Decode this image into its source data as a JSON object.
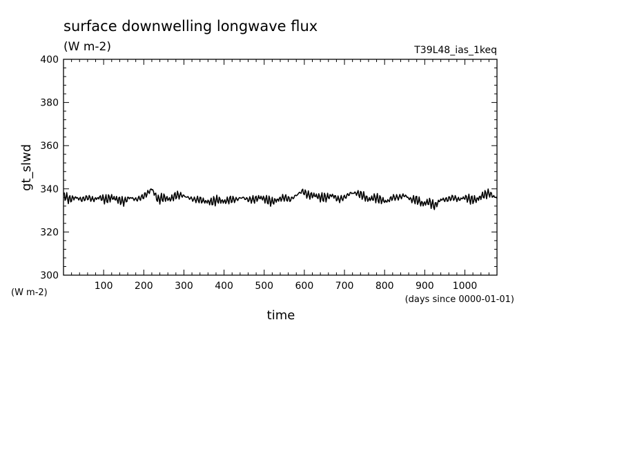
{
  "chart_data": {
    "type": "line",
    "title": "surface downwelling longwave flux",
    "units_label": "(W m-2)",
    "experiment": "T39L48_ias_1keq",
    "ylabel": "gt_slwd",
    "yunits": "(W m-2)",
    "xlabel": "time",
    "xunits": "(days since 0000-01-01)",
    "xlim": [
      0,
      1080
    ],
    "ylim": [
      300,
      400
    ],
    "x_ticks": [
      100,
      200,
      300,
      400,
      500,
      600,
      700,
      800,
      900,
      1000
    ],
    "y_ticks": [
      300,
      320,
      340,
      360,
      380,
      400
    ],
    "line_color": "#000000",
    "series": [
      {
        "x": [
          0,
          15,
          30,
          45,
          60,
          75,
          90,
          105,
          120,
          135,
          150,
          165,
          180,
          195,
          210,
          220,
          235,
          250,
          265,
          280,
          295,
          310,
          325,
          340,
          355,
          370,
          385,
          400,
          415,
          430,
          445,
          460,
          475,
          490,
          505,
          520,
          535,
          550,
          565,
          580,
          595,
          610,
          625,
          640,
          655,
          670,
          685,
          700,
          715,
          730,
          745,
          760,
          775,
          790,
          805,
          820,
          835,
          850,
          865,
          880,
          895,
          910,
          925,
          940,
          955,
          970,
          985,
          1000,
          1015,
          1030,
          1045,
          1060,
          1075,
          1080
        ],
        "values": [
          337,
          335,
          336,
          335,
          336,
          335,
          336,
          335,
          336,
          335,
          334,
          336,
          335,
          336,
          338,
          340,
          335,
          336,
          335,
          337,
          337,
          336,
          335,
          335,
          334,
          334,
          335,
          334,
          335,
          335,
          336,
          335,
          335,
          336,
          335,
          334,
          335,
          336,
          335,
          337,
          339,
          337,
          337,
          336,
          336,
          337,
          335,
          336,
          338,
          338,
          337,
          335,
          336,
          335,
          334,
          336,
          336,
          337,
          335,
          335,
          333,
          334,
          332,
          335,
          335,
          336,
          335,
          336,
          335,
          335,
          337,
          338,
          336,
          336
        ]
      }
    ]
  }
}
